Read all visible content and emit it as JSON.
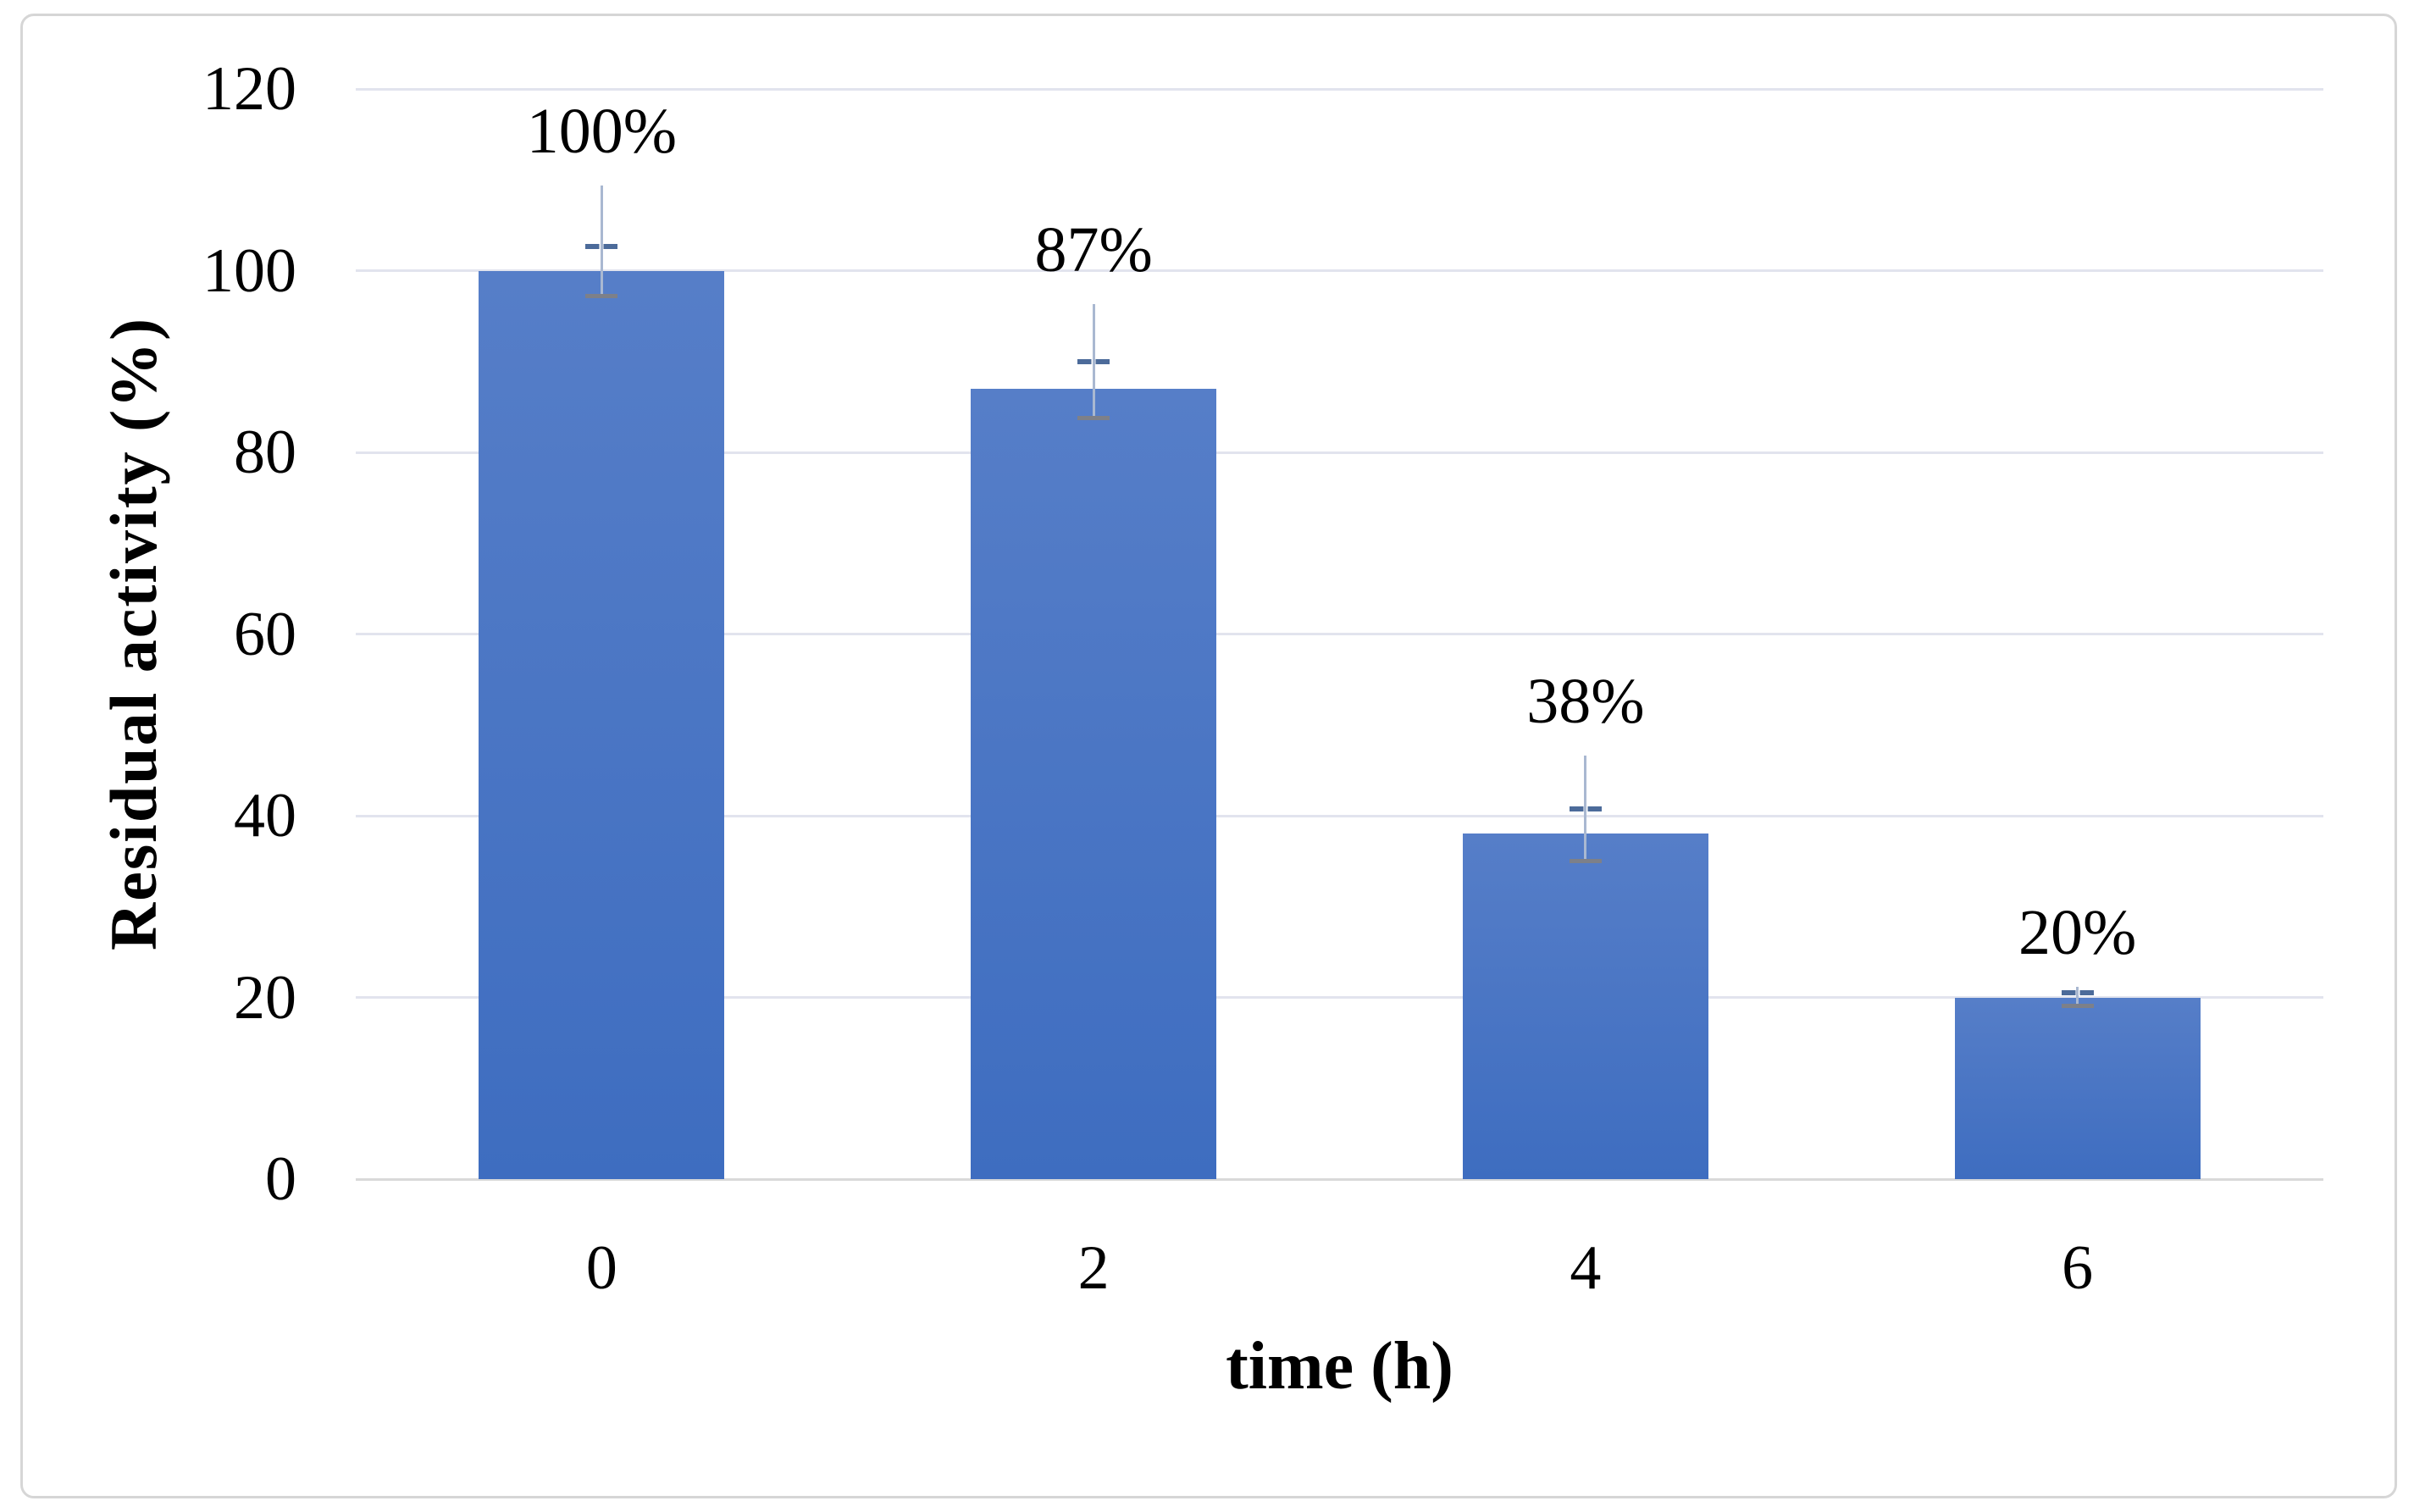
{
  "chart_data": {
    "type": "bar",
    "title": "",
    "xlabel": "time (h)",
    "ylabel": "Residual activity (%)",
    "categories": [
      "0",
      "2",
      "4",
      "6"
    ],
    "values": [
      100,
      87,
      38,
      20
    ],
    "bar_labels": [
      "100%",
      "87%",
      "38%",
      "20%"
    ],
    "y_ticks": [
      0,
      20,
      40,
      60,
      80,
      100,
      120
    ],
    "ylim": [
      0,
      120
    ],
    "grid": "horizontal-only",
    "legend": "none",
    "error_bars": [
      {
        "whisker_top": 109.4,
        "dash": 102.7,
        "cap_bottom": 97.2
      },
      {
        "whisker_top": 96.3,
        "dash": 90.0,
        "cap_bottom": 83.8
      },
      {
        "whisker_top": 46.6,
        "dash": 40.7,
        "cap_bottom": 35.0
      },
      {
        "whisker_top": 21.2,
        "dash": 20.5,
        "cap_bottom": 19.1
      }
    ],
    "colors": {
      "bar_top": "#567ec8",
      "bar_bottom": "#3e6dc0",
      "gridline": "#e2e4ee",
      "axis_line": "#d9d9d9",
      "whisker": "#a9b8d1",
      "error_dash": "#4c6b9a",
      "error_cap": "#7d8089",
      "text": "#000000",
      "frame_border": "#d6d6d6",
      "background": "#ffffff"
    }
  }
}
